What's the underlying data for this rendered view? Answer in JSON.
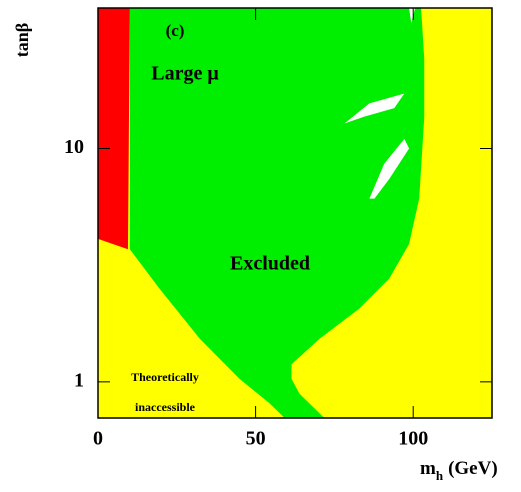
{
  "chart_data": {
    "type": "region",
    "xlabel": "m",
    "xlabel_subscript": "h",
    "xlabel_unit": "(GeV)",
    "ylabel": "tanβ",
    "xlim": [
      0,
      125
    ],
    "xticks": [
      0,
      50,
      100
    ],
    "ylim": [
      0.7,
      40
    ],
    "yticks": [
      1,
      10
    ],
    "ylog": true,
    "annotations": [
      "(c)",
      "Large μ",
      "Excluded",
      "Theoretically",
      "inaccessible"
    ],
    "regions": [
      {
        "color": "#ffff00",
        "x": [
          0,
          125,
          125,
          0
        ],
        "y": [
          0.7,
          0.7,
          40,
          40
        ]
      },
      {
        "color": "#00ee00",
        "x": [
          10.1,
          102.5,
          103.5,
          103.5,
          101.9,
          98.7,
          92.4,
          82.9,
          70.3,
          61.4,
          61.4,
          63.9,
          71.8,
          59.2,
          54.4,
          44.9,
          32.3,
          19.6,
          10.1
        ],
        "y": [
          40,
          40,
          24.3,
          13.5,
          6.1,
          3.9,
          2.77,
          2.06,
          1.53,
          1.19,
          1.03,
          0.89,
          0.7,
          0.7,
          0.81,
          1.03,
          1.53,
          2.5,
          3.7
        ]
      },
      {
        "color": "#ff0000",
        "x": [
          0,
          10.1,
          9.5,
          0
        ],
        "y": [
          40,
          40,
          3.7,
          4.1
        ]
      },
      {
        "color": "#ffffff",
        "x": [
          78.2,
          86.1,
          97.2,
          94,
          84.5
        ],
        "y": [
          12.8,
          15.6,
          17.2,
          14.9,
          13.7
        ]
      },
      {
        "color": "#ffffff",
        "x": [
          86.1,
          90.8,
          97.2,
          98.7,
          92.4,
          87.7
        ],
        "y": [
          6.1,
          8.6,
          11.0,
          10,
          7.4,
          6.1
        ]
      },
      {
        "color": "#ffffff",
        "x": [
          98.7,
          100.6,
          99.4
        ],
        "y": [
          40,
          40,
          34.4
        ]
      }
    ]
  }
}
